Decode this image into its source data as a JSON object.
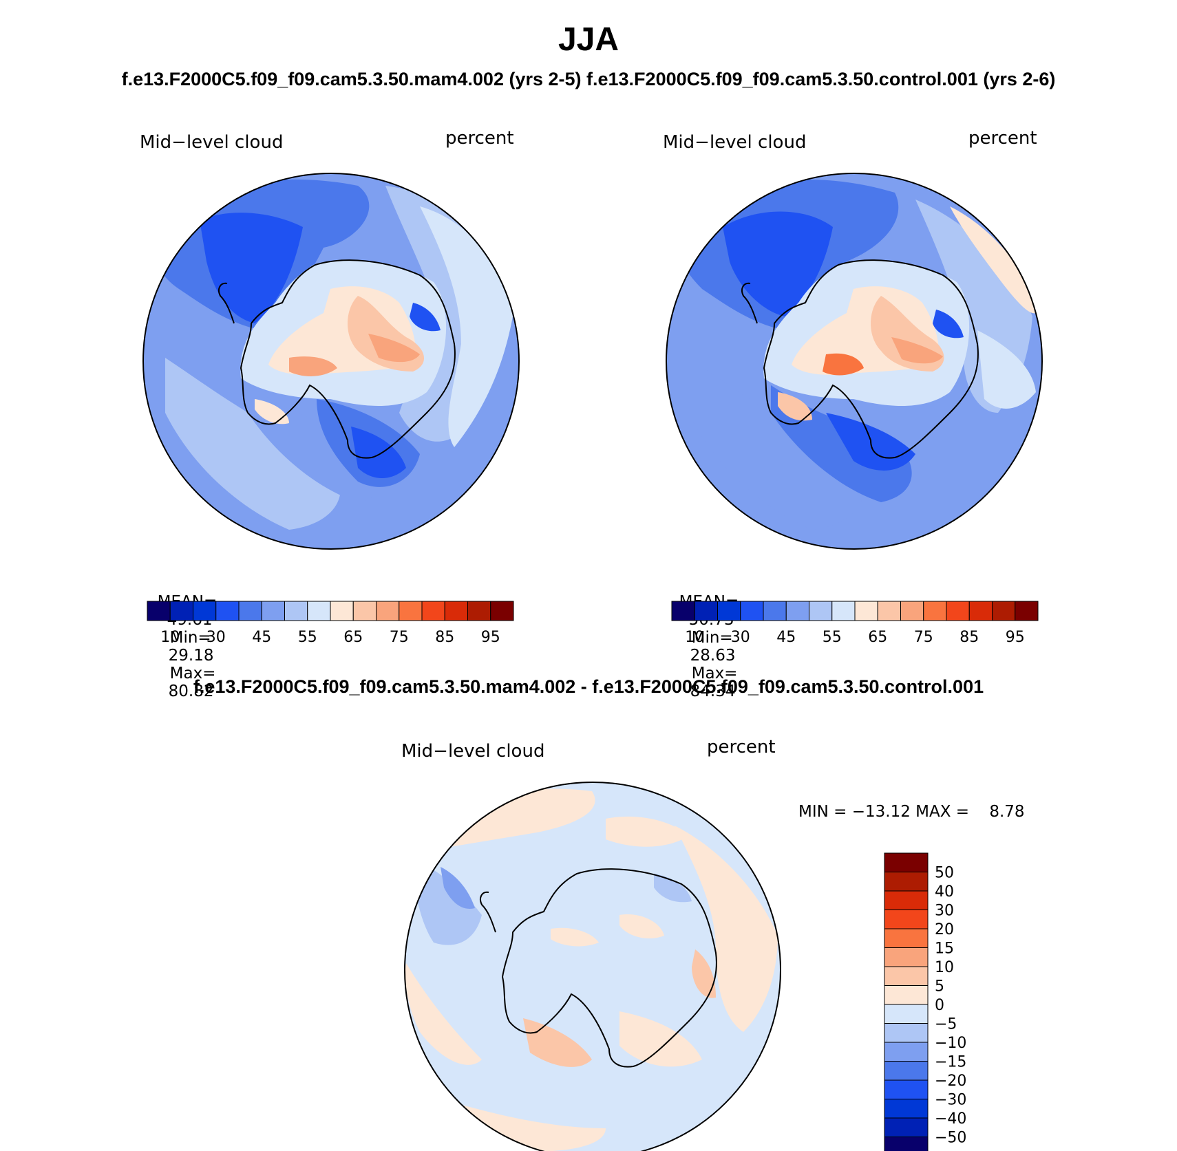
{
  "title": "JJA",
  "subtitle": "f.e13.F2000C5.f09_f09.cam5.3.50.mam4.002 (yrs 2-5) f.e13.F2000C5.f09_f09.cam5.3.50.control.001 (yrs 2-6)",
  "diff_title": "f.e13.F2000C5.f09_f09.cam5.3.50.mam4.002 - f.e13.F2000C5.f09_f09.cam5.3.50.control.001",
  "panels": [
    {
      "variable": "Mid−level cloud",
      "units": "percent",
      "stats": {
        "mean_label": "MEAN=",
        "mean": "49.61",
        "min_label": "Min=",
        "min": "29.18",
        "max_label": "Max=",
        "max": "80.82"
      }
    },
    {
      "variable": "Mid−level cloud",
      "units": "percent",
      "stats": {
        "mean_label": "MEAN=",
        "mean": "50.73",
        "min_label": "Min=",
        "min": "28.63",
        "max_label": "Max=",
        "max": "84.34"
      }
    },
    {
      "variable": "Mid−level cloud",
      "units": "percent",
      "stats_text": "MIN = −13.12 MAX =    8.78"
    }
  ],
  "colorbar_top": {
    "colors": [
      "#08006b",
      "#0021b5",
      "#0038d6",
      "#1f52f2",
      "#4b78eb",
      "#7e9ff0",
      "#aec6f5",
      "#d6e6fa",
      "#fde7d6",
      "#fbc6a8",
      "#f9a47c",
      "#f9743f",
      "#f2461b",
      "#d92b08",
      "#ad1c02",
      "#7a0000"
    ],
    "labels": [
      "10",
      "30",
      "45",
      "55",
      "65",
      "75",
      "85",
      "95"
    ]
  },
  "colorbar_diff": {
    "colors": [
      "#08006b",
      "#0021b5",
      "#0038d6",
      "#1f52f2",
      "#4b78eb",
      "#7e9ff0",
      "#aec6f5",
      "#d6e6fa",
      "#fde7d6",
      "#fbc6a8",
      "#f9a47c",
      "#f9743f",
      "#f2461b",
      "#d92b08",
      "#ad1c02",
      "#7a0000"
    ],
    "labels": [
      "50",
      "40",
      "30",
      "20",
      "15",
      "10",
      "5",
      "0",
      "−5",
      "−10",
      "−15",
      "−20",
      "−30",
      "−40",
      "−50"
    ]
  }
}
